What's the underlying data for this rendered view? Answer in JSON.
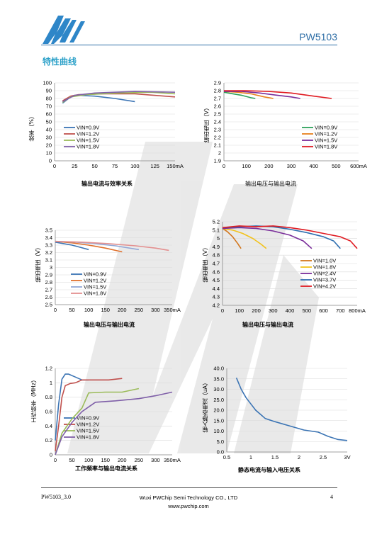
{
  "header": {
    "model": "PW5103"
  },
  "section_title": "特性曲线",
  "footer": {
    "doc_id": "PW5103_3.0",
    "company": "Wuxi PWChip Semi Technology CO., LTD",
    "website": "www.pwchip.com",
    "page": "4"
  },
  "colors": {
    "brand_blue": "#2e6ea6",
    "section_cyan": "#2aa0c8"
  },
  "chart_data": [
    {
      "type": "line",
      "title": "输出电流与效率关系",
      "ylabel": "效率（%）",
      "x_tick_labels": [
        "0",
        "25",
        "50",
        "75",
        "100",
        "125",
        "150mA"
      ],
      "y_tick_labels": [
        "0",
        "10",
        "20",
        "30",
        "40",
        "50",
        "60",
        "70",
        "80",
        "90",
        "100"
      ],
      "xlim": [
        0,
        150
      ],
      "ylim": [
        0,
        100
      ],
      "series": [
        {
          "name": "VIN=0.9V",
          "color": "#3b74b4",
          "x": [
            10,
            20,
            30,
            50,
            75,
            100
          ],
          "y": [
            74,
            82,
            84,
            83,
            80,
            76
          ]
        },
        {
          "name": "VIN=1.2V",
          "color": "#c0504d",
          "x": [
            10,
            20,
            30,
            60,
            100,
            150
          ],
          "y": [
            77,
            83,
            85,
            86,
            86,
            82
          ]
        },
        {
          "name": "VIN=1.5V",
          "color": "#9bbb59",
          "x": [
            10,
            20,
            40,
            80,
            120,
            150
          ],
          "y": [
            75,
            82,
            85,
            87,
            88,
            86
          ]
        },
        {
          "name": "VIN=1.8V",
          "color": "#7f5fa8",
          "x": [
            10,
            25,
            50,
            100,
            150
          ],
          "y": [
            76,
            84,
            87,
            89,
            88
          ]
        }
      ]
    },
    {
      "type": "line",
      "title": "输出电压与输出电流",
      "ylabel": "输出电压（V）",
      "x_tick_labels": [
        "0",
        "100",
        "200",
        "300",
        "400",
        "500",
        "600mA"
      ],
      "y_tick_labels": [
        "1.9",
        "2",
        "2.1",
        "2.2",
        "2.3",
        "2.4",
        "2.5",
        "2.6",
        "2.7",
        "2.8",
        "2.9"
      ],
      "xlim": [
        0,
        600
      ],
      "ylim": [
        1.9,
        2.9
      ],
      "series": [
        {
          "name": "VIN=0.9V",
          "color": "#2ca05a",
          "x": [
            0,
            40,
            80,
            120,
            140
          ],
          "y": [
            2.78,
            2.76,
            2.74,
            2.71,
            2.7
          ]
        },
        {
          "name": "VIN=1.2V",
          "color": "#e8801c",
          "x": [
            0,
            60,
            120,
            180,
            220
          ],
          "y": [
            2.79,
            2.78,
            2.76,
            2.72,
            2.7
          ]
        },
        {
          "name": "VIN=1.5V",
          "color": "#7a2e9a",
          "x": [
            0,
            80,
            160,
            240,
            300,
            340
          ],
          "y": [
            2.79,
            2.79,
            2.77,
            2.74,
            2.72,
            2.7
          ]
        },
        {
          "name": "VIN=1.8V",
          "color": "#e01b22",
          "x": [
            0,
            100,
            200,
            300,
            400,
            480
          ],
          "y": [
            2.8,
            2.8,
            2.79,
            2.77,
            2.73,
            2.7
          ]
        }
      ]
    },
    {
      "type": "line",
      "title": "输出电压与输出电流",
      "ylabel": "输出电压（V）",
      "x_tick_labels": [
        "0",
        "50",
        "100",
        "150",
        "200",
        "250",
        "300",
        "350mA"
      ],
      "y_tick_labels": [
        "2.5",
        "2.6",
        "2.7",
        "2.8",
        "2.9",
        "3",
        "3.1",
        "3.2",
        "3.3",
        "3.4",
        "3.5"
      ],
      "xlim": [
        0,
        350
      ],
      "ylim": [
        2.5,
        3.5
      ],
      "series": [
        {
          "name": "VIN=0.9V",
          "color": "#3b74b4",
          "x": [
            0,
            25,
            50,
            75,
            100
          ],
          "y": [
            3.34,
            3.32,
            3.3,
            3.27,
            3.24
          ]
        },
        {
          "name": "VIN=1.2V",
          "color": "#e0702c",
          "x": [
            0,
            50,
            100,
            150,
            200
          ],
          "y": [
            3.35,
            3.33,
            3.3,
            3.26,
            3.21
          ]
        },
        {
          "name": "VIN=1.5V",
          "color": "#92a7d6",
          "x": [
            0,
            60,
            120,
            180,
            250
          ],
          "y": [
            3.35,
            3.34,
            3.32,
            3.29,
            3.24
          ]
        },
        {
          "name": "VIN=1.8V",
          "color": "#e39090",
          "x": [
            0,
            80,
            160,
            240,
            300,
            340
          ],
          "y": [
            3.35,
            3.34,
            3.32,
            3.29,
            3.26,
            3.23
          ]
        }
      ]
    },
    {
      "type": "line",
      "title": "输出电压与输出电流",
      "ylabel": "输出电压（V）",
      "x_tick_labels": [
        "0",
        "100",
        "200",
        "300",
        "400",
        "500",
        "600",
        "700",
        "800mA"
      ],
      "y_tick_labels": [
        "4.2",
        "4.3",
        "4.4",
        "4.5",
        "4.6",
        "4.7",
        "4.8",
        "4.9",
        "5",
        "5.1",
        "5.2"
      ],
      "xlim": [
        0,
        800
      ],
      "ylim": [
        4.2,
        5.2
      ],
      "series": [
        {
          "name": "VIN=1.0V",
          "color": "#d3761c",
          "x": [
            0,
            30,
            60,
            90,
            110
          ],
          "y": [
            5.12,
            5.08,
            5.02,
            4.94,
            4.88
          ]
        },
        {
          "name": "VIN=1.8V",
          "color": "#f2c21b",
          "x": [
            0,
            60,
            120,
            180,
            230,
            260
          ],
          "y": [
            5.12,
            5.1,
            5.06,
            5.0,
            4.93,
            4.88
          ]
        },
        {
          "name": "VIN=2.4V",
          "color": "#7a2e9a",
          "x": [
            0,
            100,
            200,
            300,
            400,
            480,
            530
          ],
          "y": [
            5.12,
            5.13,
            5.12,
            5.09,
            5.04,
            4.97,
            4.88
          ]
        },
        {
          "name": "VIN=3.7V",
          "color": "#2f6fb0",
          "x": [
            0,
            100,
            200,
            300,
            400,
            500,
            600,
            660,
            700
          ],
          "y": [
            5.13,
            5.14,
            5.15,
            5.14,
            5.11,
            5.07,
            5.02,
            4.97,
            4.88
          ]
        },
        {
          "name": "VIN=4.2V",
          "color": "#e01b22",
          "x": [
            0,
            100,
            200,
            300,
            400,
            500,
            600,
            700,
            760,
            800
          ],
          "y": [
            5.13,
            5.15,
            5.14,
            5.15,
            5.13,
            5.1,
            5.06,
            5.02,
            4.97,
            4.88
          ]
        }
      ]
    },
    {
      "type": "line",
      "title": "工作频率与输出电流关系",
      "ylabel": "工作频率（MHz）",
      "x_tick_labels": [
        "0",
        "50",
        "100",
        "150",
        "200",
        "250",
        "300",
        "350mA"
      ],
      "y_tick_labels": [
        "0",
        "0.2",
        "0.4",
        "0.6",
        "0.8",
        "1",
        "1.2"
      ],
      "xlim": [
        0,
        350
      ],
      "ylim": [
        0,
        1.2
      ],
      "series": [
        {
          "name": "VIN=0.9V",
          "color": "#3b74b4",
          "x": [
            0,
            10,
            20,
            30,
            40,
            60,
            80,
            100
          ],
          "y": [
            0.2,
            0.7,
            1.05,
            1.12,
            1.12,
            1.08,
            1.04,
            1.04
          ]
        },
        {
          "name": "VIN=1.2V",
          "color": "#c0504d",
          "x": [
            0,
            10,
            20,
            30,
            45,
            60,
            80,
            120,
            160,
            200
          ],
          "y": [
            0.05,
            0.4,
            0.8,
            0.96,
            0.99,
            1.0,
            1.04,
            1.04,
            1.04,
            1.06
          ]
        },
        {
          "name": "VIN=1.5V",
          "color": "#9bbb59",
          "x": [
            0,
            20,
            50,
            80,
            100,
            150,
            200,
            250
          ],
          "y": [
            0.0,
            0.3,
            0.5,
            0.65,
            0.86,
            0.87,
            0.87,
            0.92
          ]
        },
        {
          "name": "VIN=1.8V",
          "color": "#7f5fa8",
          "x": [
            0,
            20,
            50,
            80,
            120,
            180,
            250,
            300,
            350
          ],
          "y": [
            0.0,
            0.25,
            0.45,
            0.6,
            0.73,
            0.75,
            0.78,
            0.82,
            0.87
          ]
        }
      ]
    },
    {
      "type": "line",
      "title": "静态电流与输入电压关系",
      "ylabel": "输入静态电流（uA）",
      "x_tick_labels": [
        "0.5",
        "1",
        "1.5",
        "2",
        "2.5",
        "3V"
      ],
      "y_tick_labels": [
        "0.0",
        "5.0",
        "10.0",
        "15.0",
        "20.0",
        "25.0",
        "30.0",
        "35.0",
        "40.0"
      ],
      "xlim": [
        0.5,
        3
      ],
      "ylim": [
        0,
        40
      ],
      "series": [
        {
          "color": "#3b74b4",
          "x": [
            0.7,
            0.8,
            0.9,
            1.0,
            1.1,
            1.2,
            1.3,
            1.5,
            1.8,
            2.1,
            2.4,
            2.6,
            2.8,
            3.0
          ],
          "y": [
            35.5,
            30,
            26,
            23,
            20,
            18,
            16,
            14.5,
            12.5,
            10.5,
            9.5,
            7.5,
            6,
            5.5
          ]
        }
      ]
    }
  ]
}
